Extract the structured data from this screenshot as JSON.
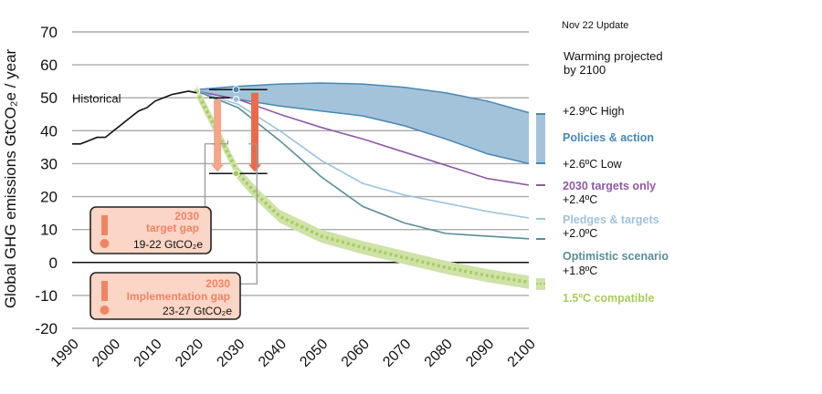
{
  "update_label": "Nov 22 Update",
  "chart_data": {
    "type": "line",
    "ylabel": "Global GHG emissions GtCO₂e / year",
    "xlim": [
      1990,
      2100
    ],
    "ylim": [
      -20,
      70
    ],
    "x_ticks": [
      1990,
      2000,
      2010,
      2020,
      2030,
      2040,
      2050,
      2060,
      2070,
      2080,
      2090,
      2100
    ],
    "y_ticks": [
      70,
      60,
      50,
      40,
      30,
      20,
      10,
      0,
      -10,
      -20
    ],
    "historical": {
      "name": "Historical",
      "color": "#111111",
      "x": [
        1990,
        1992,
        1994,
        1996,
        1998,
        2000,
        2002,
        2004,
        2006,
        2008,
        2010,
        2012,
        2014,
        2016,
        2018,
        2020
      ],
      "y": [
        36,
        36,
        37,
        38,
        38,
        40,
        42,
        44,
        46,
        47,
        49,
        50,
        51,
        51.5,
        52,
        51.5
      ]
    },
    "policies_band": {
      "name": "Policies & action",
      "color": "#4a87b3",
      "fill": "#a3c3da",
      "x": [
        2020,
        2030,
        2040,
        2050,
        2060,
        2070,
        2080,
        2090,
        2100
      ],
      "upper": [
        52.5,
        53.5,
        54.2,
        54.5,
        54.2,
        53.2,
        51.5,
        49,
        45.5
      ],
      "lower": [
        52,
        49.5,
        47.5,
        46,
        44.5,
        41.5,
        37.5,
        33,
        30
      ]
    },
    "series": [
      {
        "name": "2030 targets only",
        "color": "#8e5ba6",
        "x": [
          2020,
          2030,
          2040,
          2050,
          2060,
          2070,
          2080,
          2090,
          2100
        ],
        "y": [
          52,
          49.5,
          45,
          41,
          37.5,
          33.5,
          29.5,
          25.5,
          23.5
        ]
      },
      {
        "name": "Pledges & targets",
        "color": "#9fc3dc",
        "x": [
          2020,
          2030,
          2040,
          2050,
          2060,
          2070,
          2080,
          2090,
          2100
        ],
        "y": [
          52,
          48,
          40,
          31,
          24,
          20.5,
          18,
          15.5,
          13.5
        ]
      },
      {
        "name": "Optimistic scenario",
        "color": "#5a8e95",
        "x": [
          2020,
          2030,
          2040,
          2050,
          2060,
          2070,
          2080,
          2090,
          2100
        ],
        "y": [
          52,
          47,
          37,
          26,
          17,
          12,
          8.8,
          8,
          7.2
        ]
      },
      {
        "name": "1.5ºC compatible",
        "color": "#a9cc5e",
        "x": [
          2020,
          2030,
          2035,
          2040,
          2050,
          2060,
          2070,
          2080,
          2090,
          2100
        ],
        "y": [
          52,
          27,
          20,
          14,
          8,
          4.5,
          1.5,
          -1.5,
          -4,
          -6
        ]
      }
    ],
    "target_gap": {
      "title": "2030",
      "subtitle": "target gap",
      "value": "19-22 GtCO₂e",
      "x": 2025,
      "from_y": 52,
      "to_y": 27
    },
    "implementation_gap": {
      "title": "2030",
      "subtitle": "Implementation gap",
      "value": "23-27 GtCO₂e",
      "x": 2034,
      "from_y": 52,
      "to_y": 27
    },
    "right_labels": {
      "projected_header_1": "Warming projected",
      "projected_header_2": "by 2100",
      "high": "+2.9ºC High",
      "policies": "Policies & action",
      "low": "+2.6ºC Low",
      "targets_only": "2030 targets only",
      "targets_only_temp": "+2.4ºC",
      "pledges": "Pledges & targets",
      "pledges_temp": "+2.0ºC",
      "optimistic": "Optimistic scenario",
      "optimistic_temp": "+1.8ºC",
      "compatible": "1.5ºC compatible"
    }
  }
}
